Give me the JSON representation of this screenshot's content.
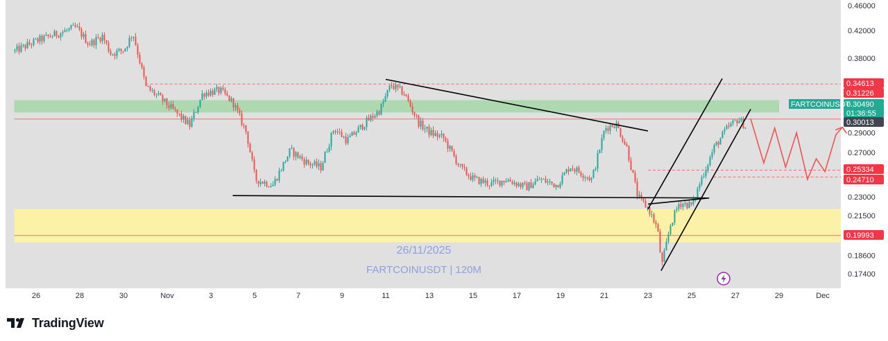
{
  "brand": "TradingView",
  "watermark": {
    "date": "26/11/2025",
    "symbol_line": "FARTCOINUSDT | 120M"
  },
  "colors": {
    "bull": "#26a69a",
    "bear": "#ef5350",
    "green_zone": "#a5d6a7",
    "yellow_zone": "#fff59d",
    "red_line": "#e57373",
    "projection": "#ef5350",
    "tag_red": "#f23645",
    "tag_green": "#22ab94",
    "tag_dark": "#434651",
    "plot_bg": "#e0e0e0"
  },
  "chart_data": {
    "type": "candlestick",
    "symbol": "FARTCOINUSDT",
    "interval": "120M",
    "ylim": [
      0.168,
      0.462
    ],
    "y_scale": "log",
    "x_tick_labels": [
      "26",
      "28",
      "30",
      "Nov",
      "3",
      "5",
      "7",
      "9",
      "11",
      "13",
      "15",
      "17",
      "19",
      "21",
      "23",
      "25",
      "27",
      "29",
      "Dec"
    ],
    "y_tick_labels": [
      "0.46000",
      "0.42000",
      "0.38000",
      "0.34613",
      "0.31226",
      "0.30490",
      "0.30013",
      "0.29000",
      "0.27000",
      "0.25334",
      "0.24710",
      "0.23000",
      "0.21500",
      "0.19993",
      "0.18600",
      "0.17400"
    ],
    "price_tags": [
      {
        "label": "0.34613",
        "color": "red"
      },
      {
        "label": "0.31226",
        "color": "red"
      },
      {
        "label": "FARTCOINUSDT",
        "value": "0.30490",
        "countdown": "01:36:55",
        "color": "green"
      },
      {
        "label": "0.30013",
        "color": "dark"
      },
      {
        "label": "0.25334",
        "color": "red"
      },
      {
        "label": "0.24710",
        "color": "red"
      },
      {
        "label": "0.19993",
        "color": "red"
      }
    ],
    "zones": [
      {
        "name": "green-zone",
        "from": 0.3122,
        "to": 0.3265,
        "x_start": "Oct 25",
        "x_end": "Nov 28"
      },
      {
        "name": "yellow-zone",
        "from": 0.195,
        "to": 0.22,
        "x_start": "Oct 25",
        "x_end": "Dec 1"
      }
    ],
    "horizontal_lines": [
      {
        "price": 0.3461,
        "style": "dashed",
        "color": "red",
        "x_start": "Oct 31"
      },
      {
        "price": 0.3049,
        "style": "solid",
        "color": "red",
        "x_start": "Oct 25"
      },
      {
        "price": 0.2533,
        "style": "dashed",
        "color": "red",
        "x_start": "Nov 22"
      },
      {
        "price": 0.2471,
        "style": "dashed",
        "color": "red",
        "x_start": "Nov 25"
      },
      {
        "price": 0.1999,
        "style": "solid",
        "color": "red",
        "x_start": "Oct 25"
      }
    ],
    "trendlines": [
      {
        "from": [
          "Nov 3",
          0.231
        ],
        "to": [
          "Nov 24.8",
          0.229
        ]
      },
      {
        "from": [
          "Nov 10",
          0.352
        ],
        "to": [
          "Nov 22",
          0.292
        ]
      },
      {
        "from": [
          "Nov 22",
          0.22
        ],
        "to": [
          "Nov 25.4",
          0.353
        ]
      },
      {
        "from": [
          "Nov 22.6",
          0.176
        ],
        "to": [
          "Nov 26.7",
          0.316
        ]
      },
      {
        "from": [
          "Nov 22",
          0.224
        ],
        "to": [
          "Nov 24.8",
          0.229
        ]
      }
    ],
    "projection_path": [
      [
        "Nov 26.7",
        0.305
      ],
      [
        "Nov 27.3",
        0.26
      ],
      [
        "Nov 27.8",
        0.295
      ],
      [
        "Nov 28.3",
        0.256
      ],
      [
        "Nov 28.8",
        0.29
      ],
      [
        "Nov 29.3",
        0.245
      ],
      [
        "Nov 29.7",
        0.264
      ],
      [
        "Nov 30.1",
        0.252
      ],
      [
        "Nov 30.6",
        0.288
      ],
      [
        "Nov 30.9",
        0.296
      ]
    ],
    "anchors": [
      [
        "Oct 25",
        0.39
      ],
      [
        "Oct 26",
        0.405
      ],
      [
        "Oct 27",
        0.416
      ],
      [
        "Oct 27.8",
        0.425
      ],
      [
        "Oct 28.4",
        0.4
      ],
      [
        "Oct 29",
        0.412
      ],
      [
        "Oct 29.4",
        0.386
      ],
      [
        "Oct 30",
        0.392
      ],
      [
        "Oct 30.4",
        0.417
      ],
      [
        "Oct 31",
        0.342
      ],
      [
        "Oct 31.6",
        0.33
      ],
      [
        "Nov 1",
        0.298
      ],
      [
        "Nov 1.6",
        0.335
      ],
      [
        "Nov 2.4",
        0.338
      ],
      [
        "Nov 3",
        0.323
      ],
      [
        "Nov 3.6",
        0.29
      ],
      [
        "Nov 4",
        0.245
      ],
      [
        "Nov 4.8",
        0.24
      ],
      [
        "Nov 5.6",
        0.272
      ],
      [
        "Nov 6.4",
        0.26
      ],
      [
        "Nov 7",
        0.256
      ],
      [
        "Nov 7.6",
        0.295
      ],
      [
        "Nov 8.2",
        0.282
      ],
      [
        "Nov 9",
        0.3
      ],
      [
        "Nov 9.7",
        0.315
      ],
      [
        "Nov 10.2",
        0.345
      ],
      [
        "Nov 10.8",
        0.335
      ],
      [
        "Nov 11.5",
        0.3
      ],
      [
        "Nov 12",
        0.29
      ],
      [
        "Nov 12.6",
        0.285
      ],
      [
        "Nov 13.4",
        0.255
      ],
      [
        "Nov 14",
        0.245
      ],
      [
        "Nov 14.8",
        0.241
      ],
      [
        "Nov 15.5",
        0.245
      ],
      [
        "Nov 16.4",
        0.238
      ],
      [
        "Nov 17",
        0.245
      ],
      [
        "Nov 17.8",
        0.24
      ],
      [
        "Nov 18.4",
        0.257
      ],
      [
        "Nov 19.4",
        0.245
      ],
      [
        "Nov 20",
        0.295
      ],
      [
        "Nov 20.5",
        0.3
      ],
      [
        "Nov 21",
        0.275
      ],
      [
        "Nov 21.5",
        0.23
      ],
      [
        "Nov 22",
        0.22
      ],
      [
        "Nov 22.4",
        0.205
      ],
      [
        "Nov 22.6",
        0.179
      ],
      [
        "Nov 23",
        0.208
      ],
      [
        "Nov 23.4",
        0.225
      ],
      [
        "Nov 24",
        0.223
      ],
      [
        "Nov 24.4",
        0.245
      ],
      [
        "Nov 25",
        0.275
      ],
      [
        "Nov 25.6",
        0.295
      ],
      [
        "Nov 26.1",
        0.305
      ],
      [
        "Nov 26.5",
        0.295
      ]
    ]
  }
}
